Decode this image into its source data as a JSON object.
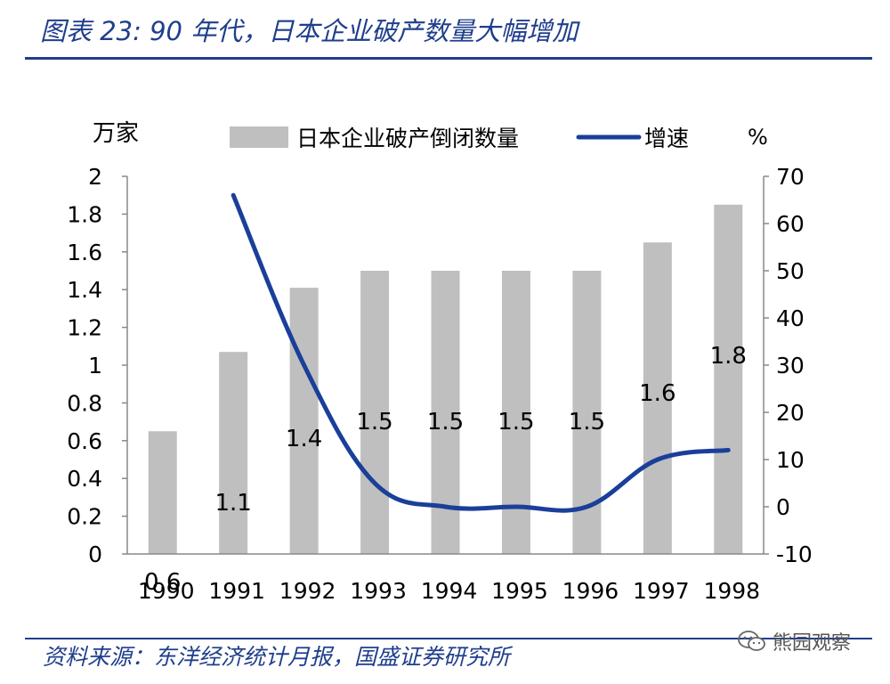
{
  "header": {
    "title": "图表 23: 90 年代，日本企业破产数量大幅增加"
  },
  "footer": {
    "source": "资料来源：东洋经济统计月报，国盛证券研究所",
    "watermark": "熊园观察",
    "watermark_icon": "wechat-icon"
  },
  "colors": {
    "brand_blue": "#1f3e8c",
    "bar": "#bfbfbf",
    "line": "#1a3f9a"
  },
  "chart_data": {
    "type": "bar",
    "categories": [
      "1990",
      "1991",
      "1992",
      "1993",
      "1994",
      "1995",
      "1996",
      "1997",
      "1998"
    ],
    "series": [
      {
        "name": "日本企业破产倒闭数量",
        "type": "bar",
        "axis": "left",
        "values": [
          0.65,
          1.07,
          1.41,
          1.5,
          1.5,
          1.5,
          1.5,
          1.65,
          1.85
        ],
        "labels": [
          "0.6",
          "1.1",
          "1.4",
          "1.5",
          "1.5",
          "1.5",
          "1.5",
          "1.6",
          "1.8"
        ]
      },
      {
        "name": "增速",
        "type": "line",
        "axis": "right",
        "values": [
          null,
          66,
          30,
          5,
          0,
          0,
          0,
          10,
          12
        ]
      }
    ],
    "left_axis": {
      "unit": "万家",
      "ylim": [
        0,
        2
      ],
      "ticks": [
        "0",
        "0.2",
        "0.4",
        "0.6",
        "0.8",
        "1",
        "1.2",
        "1.4",
        "1.6",
        "1.8",
        "2"
      ]
    },
    "right_axis": {
      "unit": "%",
      "ylim": [
        -10,
        70
      ],
      "ticks": [
        "-10",
        "0",
        "10",
        "20",
        "30",
        "40",
        "50",
        "60",
        "70"
      ]
    },
    "legend_position": "top",
    "grid": false
  }
}
